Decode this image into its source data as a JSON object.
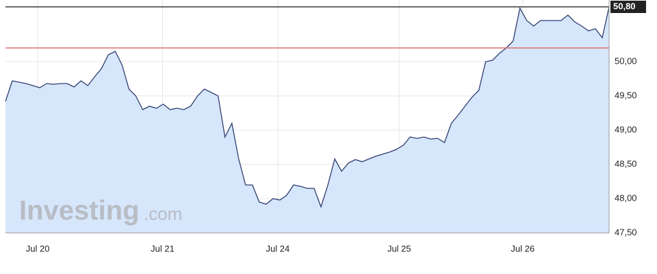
{
  "chart_data": {
    "type": "area",
    "watermark": "Investing",
    "watermark_suffix": ".com",
    "series": [
      {
        "color": "#2f3d6e",
        "fill": "#d6e6fb",
        "values": [
          49.42,
          49.72,
          49.7,
          49.68,
          49.65,
          49.62,
          49.68,
          49.67,
          49.68,
          49.68,
          49.63,
          49.72,
          49.65,
          49.78,
          49.9,
          50.1,
          50.15,
          49.95,
          49.6,
          49.5,
          49.3,
          49.35,
          49.32,
          49.38,
          49.3,
          49.32,
          49.3,
          49.35,
          49.5,
          49.6,
          49.55,
          49.5,
          48.9,
          49.1,
          48.58,
          48.2,
          48.2,
          47.95,
          47.92,
          48.0,
          47.98,
          48.05,
          48.2,
          48.18,
          48.15,
          48.15,
          47.88,
          48.2,
          48.58,
          48.4,
          48.52,
          48.57,
          48.54,
          48.58,
          48.62,
          48.65,
          48.68,
          48.72,
          48.78,
          48.9,
          48.88,
          48.9,
          48.87,
          48.88,
          48.82,
          49.1,
          49.22,
          49.35,
          49.48,
          49.58,
          50.0,
          50.02,
          50.12,
          50.2,
          50.3,
          50.78,
          50.6,
          50.52,
          50.6,
          50.6,
          50.6,
          50.6,
          50.68,
          50.58,
          50.52,
          50.45,
          50.48,
          50.35,
          50.8
        ]
      }
    ],
    "xlim": [
      0,
      88
    ],
    "xticks": [
      {
        "value": 4.7,
        "label": "Jul 20"
      },
      {
        "value": 22.9,
        "label": "Jul 21"
      },
      {
        "value": 39.7,
        "label": "Jul 24"
      },
      {
        "value": 57.4,
        "label": "Jul 25"
      },
      {
        "value": 75.4,
        "label": "Jul 26"
      }
    ],
    "ylim": [
      47.5,
      50.9
    ],
    "yticks": [
      {
        "value": 47.5,
        "label": "47,50"
      },
      {
        "value": 48,
        "label": "48,00"
      },
      {
        "value": 48.5,
        "label": "48,50"
      },
      {
        "value": 49,
        "label": "49,00"
      },
      {
        "value": 49.5,
        "label": "49,50"
      },
      {
        "value": 50,
        "label": "50,00"
      }
    ],
    "last_price": {
      "value": 50.8,
      "label": "50,80"
    },
    "reference_line": {
      "value": 50.2,
      "color": "#e07070"
    },
    "grid": true
  }
}
